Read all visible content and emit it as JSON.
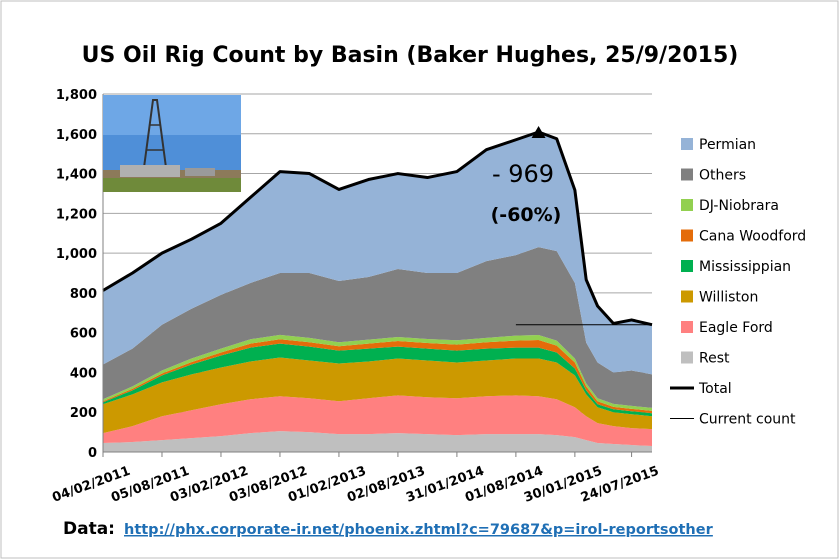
{
  "chart_data": {
    "type": "stacked-area",
    "title": "US Oil Rig Count by Basin (Baker Hughes, 25/9/2015)",
    "x": [
      "2011-02-04",
      "2011-05-06",
      "2011-08-05",
      "2011-11-04",
      "2012-02-03",
      "2012-05-04",
      "2012-08-03",
      "2012-11-02",
      "2013-02-01",
      "2013-05-03",
      "2013-08-02",
      "2013-11-01",
      "2014-01-31",
      "2014-05-02",
      "2014-08-01",
      "2014-10-10",
      "2014-12-05",
      "2015-01-30",
      "2015-03-06",
      "2015-04-10",
      "2015-05-29",
      "2015-07-24",
      "2015-09-25"
    ],
    "xlim": [
      "2011-02-04",
      "2015-09-25"
    ],
    "xticks": [
      {
        "value": "2011-02-04",
        "label": "04/02/2011"
      },
      {
        "value": "2011-08-05",
        "label": "05/08/2011"
      },
      {
        "value": "2012-02-03",
        "label": "03/02/2012"
      },
      {
        "value": "2012-08-03",
        "label": "03/08/2012"
      },
      {
        "value": "2013-02-01",
        "label": "01/02/2013"
      },
      {
        "value": "2013-08-02",
        "label": "02/08/2013"
      },
      {
        "value": "2014-01-31",
        "label": "31/01/2014"
      },
      {
        "value": "2014-08-01",
        "label": "01/08/2014"
      },
      {
        "value": "2015-01-30",
        "label": "30/01/2015"
      },
      {
        "value": "2015-07-24",
        "label": "24/07/2015"
      }
    ],
    "ylim": [
      0,
      1800
    ],
    "yticks": [
      0,
      {
        "value": 200,
        "label": "200"
      },
      {
        "value": 400,
        "label": "400"
      },
      {
        "value": 600,
        "label": "600"
      },
      {
        "value": 800,
        "label": "800"
      },
      {
        "value": 1000,
        "label": "1,000"
      },
      {
        "value": 1200,
        "label": "1,200"
      },
      {
        "value": 1400,
        "label": "1,400"
      },
      {
        "value": 1600,
        "label": "1,600"
      },
      {
        "value": 1800,
        "label": "1,800"
      }
    ],
    "grid": true,
    "legend": "right",
    "series": [
      {
        "name": "Rest",
        "color": "#bfbfbf",
        "values": [
          45,
          50,
          60,
          70,
          80,
          95,
          105,
          100,
          90,
          90,
          95,
          90,
          85,
          90,
          90,
          90,
          85,
          75,
          60,
          45,
          40,
          35,
          30
        ]
      },
      {
        "name": "Eagle Ford",
        "color": "#ff8080",
        "values": [
          50,
          80,
          120,
          140,
          160,
          170,
          175,
          170,
          165,
          180,
          190,
          185,
          185,
          190,
          195,
          190,
          180,
          150,
          120,
          100,
          90,
          85,
          85
        ]
      },
      {
        "name": "Williston",
        "color": "#cc9900",
        "values": [
          145,
          160,
          170,
          180,
          185,
          190,
          195,
          190,
          190,
          185,
          185,
          185,
          180,
          180,
          185,
          190,
          185,
          160,
          110,
          80,
          70,
          70,
          65
        ]
      },
      {
        "name": "Mississippian",
        "color": "#00b050",
        "values": [
          10,
          20,
          35,
          50,
          60,
          70,
          70,
          70,
          65,
          65,
          60,
          60,
          60,
          60,
          55,
          55,
          50,
          35,
          20,
          15,
          15,
          15,
          15
        ]
      },
      {
        "name": "Cana Woodford",
        "color": "#e46c0a",
        "values": [
          5,
          8,
          10,
          12,
          15,
          20,
          22,
          22,
          22,
          25,
          28,
          28,
          30,
          32,
          35,
          38,
          35,
          30,
          20,
          15,
          12,
          12,
          12
        ]
      },
      {
        "name": "DJ-Niobrara",
        "color": "#92d050",
        "values": [
          10,
          12,
          15,
          18,
          20,
          22,
          22,
          22,
          20,
          20,
          20,
          20,
          22,
          22,
          25,
          25,
          25,
          20,
          15,
          15,
          15,
          15,
          15
        ]
      },
      {
        "name": "Others",
        "color": "#808080",
        "values": [
          175,
          190,
          230,
          250,
          270,
          283,
          311,
          326,
          308,
          315,
          342,
          332,
          338,
          386,
          405,
          442,
          450,
          380,
          205,
          180,
          158,
          178,
          168
        ]
      },
      {
        "name": "Permian",
        "color": "#95b3d7",
        "values": [
          372,
          380,
          360,
          350,
          360,
          430,
          510,
          500,
          460,
          490,
          480,
          480,
          510,
          560,
          580,
          579,
          565,
          467,
          316,
          284,
          246,
          254,
          250
        ]
      }
    ],
    "lines": [
      {
        "name": "Total",
        "color": "#000000",
        "width": 3,
        "values": [
          812,
          900,
          1000,
          1070,
          1150,
          1280,
          1410,
          1400,
          1320,
          1370,
          1400,
          1380,
          1410,
          1520,
          1570,
          1609,
          1575,
          1317,
          866,
          734,
          646,
          664,
          640
        ]
      },
      {
        "name": "Current count",
        "color": "#000000",
        "width": 1,
        "values": [
          null,
          null,
          null,
          null,
          null,
          null,
          null,
          null,
          null,
          null,
          null,
          null,
          null,
          null,
          640,
          640,
          640,
          640,
          640,
          640,
          640,
          640,
          640
        ]
      }
    ],
    "annotations": [
      "- 969",
      "(-60%)"
    ],
    "footer": {
      "label": "Data:",
      "link": "http://phx.corporate-ir.net/phoenix.zhtml?c=79687&p=irol-reportsother"
    }
  }
}
